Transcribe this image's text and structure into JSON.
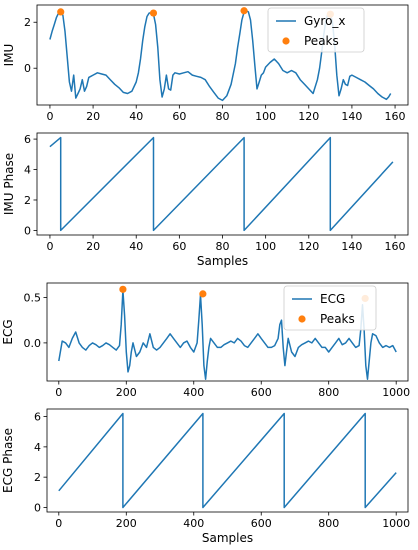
{
  "colors": {
    "line": "#1f77b4",
    "peaks": "#ff7f0e",
    "axes": "#000000",
    "legend_border": "#cccccc"
  },
  "chart_data": [
    {
      "type": "line",
      "ylabel": "IMU",
      "xlabel": "",
      "xlim": [
        -6,
        166
      ],
      "ylim": [
        -1.6,
        2.75
      ],
      "xticks": [
        0,
        20,
        40,
        60,
        80,
        100,
        120,
        140,
        160
      ],
      "yticks": [
        0,
        2
      ],
      "legend_position": "top-right",
      "series": [
        {
          "name": "Gyro_x",
          "kind": "line",
          "color": "#1f77b4",
          "x": [
            0,
            1,
            2,
            3,
            4,
            5,
            6,
            7,
            8,
            9,
            10,
            11,
            12,
            13,
            14,
            15,
            16,
            17,
            18,
            19,
            20,
            22,
            24,
            26,
            28,
            30,
            32,
            34,
            36,
            38,
            40,
            41,
            42,
            43,
            44,
            45,
            46,
            47,
            48,
            49,
            50,
            51,
            52,
            53,
            54,
            55,
            56,
            57,
            58,
            60,
            62,
            64,
            66,
            68,
            70,
            72,
            74,
            76,
            78,
            80,
            82,
            84,
            86,
            87,
            88,
            89,
            90,
            91,
            92,
            93,
            94,
            95,
            96,
            97,
            98,
            99,
            100,
            102,
            104,
            106,
            108,
            110,
            112,
            114,
            116,
            118,
            120,
            122,
            124,
            125,
            126,
            127,
            128,
            129,
            130,
            131,
            132,
            133,
            134,
            135,
            136,
            137,
            138,
            139,
            140,
            142,
            144,
            146,
            148,
            150,
            152,
            154,
            156,
            157,
            158
          ],
          "y": [
            1.25,
            1.6,
            1.9,
            2.2,
            2.4,
            2.45,
            2.3,
            1.6,
            0.5,
            -0.6,
            -1.0,
            -0.3,
            -1.3,
            -1.1,
            -0.9,
            -0.5,
            -1.0,
            -0.8,
            -0.4,
            -0.35,
            -0.3,
            -0.2,
            -0.25,
            -0.3,
            -0.5,
            -0.7,
            -0.85,
            -1.05,
            -1.1,
            -1.0,
            -0.6,
            -0.2,
            0.4,
            1.2,
            1.8,
            2.25,
            2.4,
            2.4,
            2.35,
            1.9,
            0.9,
            -0.5,
            -1.25,
            -0.9,
            -0.3,
            -0.9,
            -0.95,
            -0.3,
            -0.2,
            -0.25,
            -0.2,
            -0.15,
            -0.3,
            -0.35,
            -0.4,
            -0.5,
            -0.8,
            -1.05,
            -1.3,
            -1.4,
            -1.2,
            -0.7,
            0.2,
            0.9,
            1.5,
            2.1,
            2.45,
            2.5,
            2.45,
            2.1,
            1.2,
            0.1,
            -0.9,
            -0.6,
            -0.3,
            -0.2,
            0.05,
            0.25,
            0.4,
            0.2,
            -0.1,
            -0.2,
            -0.1,
            -0.2,
            -0.5,
            -0.7,
            -0.9,
            -1.1,
            -0.5,
            0.0,
            0.7,
            1.5,
            2.1,
            2.4,
            2.35,
            2.0,
            1.0,
            -0.3,
            -1.2,
            -0.9,
            -0.5,
            -0.7,
            -0.75,
            -0.35,
            -0.3,
            -0.4,
            -0.5,
            -0.6,
            -0.75,
            -0.9,
            -1.1,
            -1.25,
            -1.35,
            -1.25,
            -1.1
          ]
        },
        {
          "name": "Peaks",
          "kind": "scatter",
          "color": "#ff7f0e",
          "x": [
            5,
            48,
            90,
            130
          ],
          "y": [
            2.45,
            2.4,
            2.5,
            2.35
          ]
        }
      ]
    },
    {
      "type": "line",
      "ylabel": "IMU Phase",
      "xlabel": "Samples",
      "xlim": [
        -6,
        166
      ],
      "ylim": [
        -0.3,
        6.4
      ],
      "xticks": [
        0,
        20,
        40,
        60,
        80,
        100,
        120,
        140,
        160
      ],
      "yticks": [
        0,
        2,
        4,
        6
      ],
      "series": [
        {
          "kind": "line",
          "color": "#1f77b4",
          "x": [
            0,
            5,
            5,
            48,
            48,
            90,
            90,
            130,
            130,
            159
          ],
          "y": [
            5.5,
            6.1,
            0.0,
            6.1,
            0.0,
            6.1,
            0.0,
            6.1,
            0.0,
            4.5
          ]
        }
      ]
    },
    {
      "type": "line",
      "ylabel": "ECG",
      "xlabel": "",
      "xlim": [
        -35,
        1035
      ],
      "ylim": [
        -0.42,
        0.66
      ],
      "xticks": [
        0,
        200,
        400,
        600,
        800,
        1000
      ],
      "yticks": [
        0.0,
        0.5
      ],
      "legend_position": "top-right",
      "series": [
        {
          "name": "ECG",
          "kind": "line",
          "color": "#1f77b4",
          "x": [
            0,
            10,
            20,
            30,
            40,
            50,
            60,
            70,
            80,
            90,
            100,
            110,
            120,
            130,
            140,
            150,
            160,
            170,
            180,
            185,
            190,
            195,
            200,
            205,
            210,
            215,
            220,
            230,
            240,
            250,
            260,
            270,
            280,
            290,
            300,
            310,
            320,
            330,
            340,
            350,
            360,
            370,
            380,
            390,
            400,
            410,
            415,
            420,
            425,
            430,
            435,
            440,
            445,
            450,
            460,
            470,
            480,
            490,
            500,
            510,
            520,
            530,
            540,
            550,
            560,
            570,
            580,
            590,
            600,
            610,
            620,
            630,
            640,
            650,
            655,
            660,
            665,
            670,
            675,
            680,
            690,
            700,
            710,
            720,
            730,
            740,
            750,
            760,
            770,
            780,
            790,
            800,
            810,
            820,
            830,
            840,
            850,
            860,
            870,
            880,
            890,
            895,
            900,
            905,
            910,
            915,
            920,
            925,
            930,
            940,
            950,
            960,
            970,
            980,
            990,
            1000
          ],
          "y": [
            -0.2,
            0.02,
            0.0,
            -0.05,
            0.05,
            0.12,
            0.0,
            -0.05,
            -0.08,
            -0.03,
            0.0,
            -0.02,
            -0.05,
            -0.03,
            0.0,
            -0.02,
            -0.05,
            -0.08,
            -0.03,
            0.2,
            0.58,
            0.3,
            -0.1,
            -0.32,
            -0.25,
            -0.1,
            0.0,
            -0.15,
            -0.1,
            0.0,
            -0.05,
            0.1,
            -0.05,
            -0.08,
            -0.05,
            0.0,
            0.05,
            0.1,
            0.05,
            0.0,
            -0.05,
            0.0,
            0.02,
            -0.05,
            -0.1,
            0.0,
            0.25,
            0.53,
            0.2,
            -0.25,
            -0.4,
            -0.2,
            -0.05,
            0.05,
            0.0,
            -0.05,
            -0.05,
            -0.02,
            0.0,
            0.02,
            0.0,
            0.05,
            0.02,
            -0.03,
            -0.05,
            0.0,
            0.05,
            0.1,
            0.05,
            0.0,
            -0.05,
            -0.05,
            -0.03,
            0.05,
            0.2,
            0.25,
            -0.05,
            -0.25,
            -0.1,
            0.05,
            -0.1,
            -0.15,
            -0.05,
            -0.02,
            0.0,
            0.02,
            0.0,
            0.05,
            0.0,
            -0.05,
            -0.05,
            -0.1,
            -0.05,
            0.0,
            0.05,
            -0.02,
            0.0,
            0.05,
            0.0,
            -0.05,
            -0.03,
            0.15,
            0.42,
            0.15,
            -0.25,
            -0.4,
            -0.2,
            0.0,
            0.1,
            0.08,
            0.0,
            -0.05,
            -0.03,
            -0.05,
            -0.03,
            -0.1
          ]
        },
        {
          "name": "Peaks",
          "kind": "scatter",
          "color": "#ff7f0e",
          "x": [
            190,
            427,
            908
          ],
          "y": [
            0.59,
            0.54,
            0.49
          ]
        }
      ]
    },
    {
      "type": "line",
      "ylabel": "ECG Phase",
      "xlabel": "Samples",
      "xlim": [
        -35,
        1035
      ],
      "ylim": [
        -0.3,
        6.5
      ],
      "xticks": [
        0,
        200,
        400,
        600,
        800,
        1000
      ],
      "yticks": [
        0,
        2,
        4,
        6
      ],
      "series": [
        {
          "kind": "line",
          "color": "#1f77b4",
          "x": [
            0,
            190,
            190,
            427,
            427,
            668,
            668,
            908,
            908,
            1000
          ],
          "y": [
            1.1,
            6.2,
            0.0,
            6.2,
            0.0,
            6.2,
            0.0,
            6.2,
            0.0,
            2.3
          ]
        }
      ]
    }
  ]
}
